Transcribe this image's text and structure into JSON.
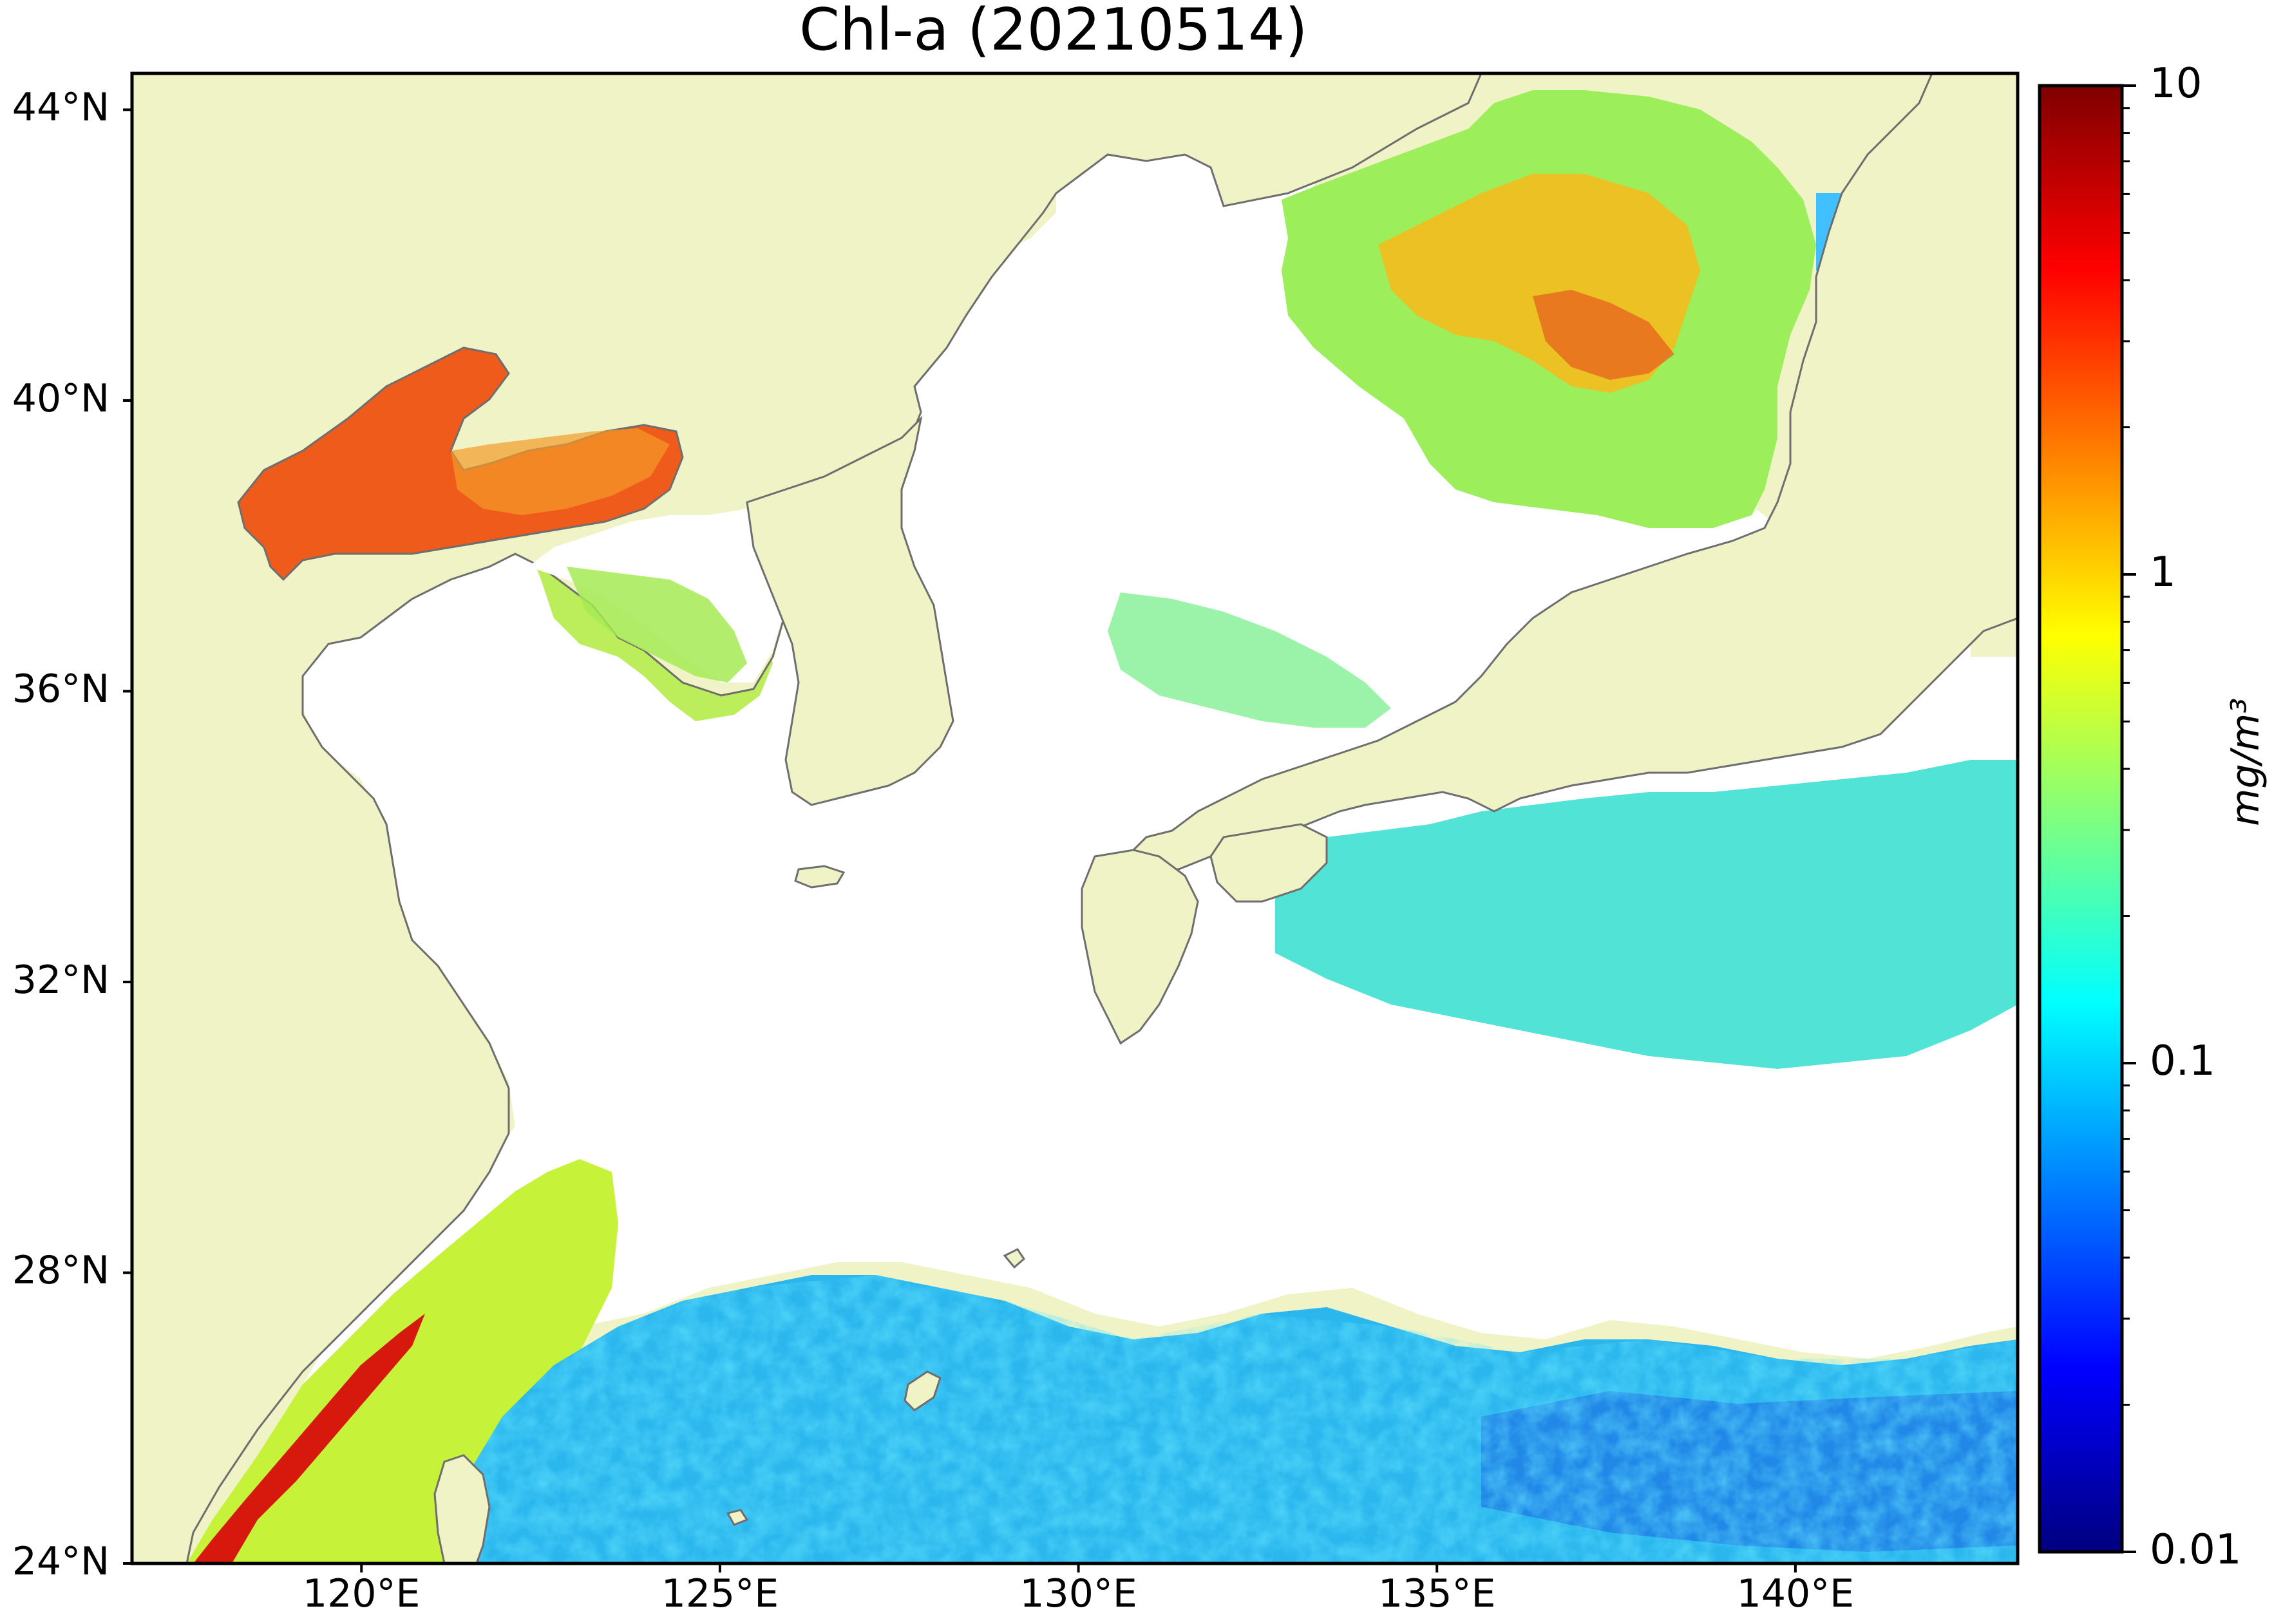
{
  "title": "Chl-a (20210514)",
  "map": {
    "extent": {
      "lon_min": 116.8,
      "lon_max": 143.1,
      "lat_min": 24.0,
      "lat_max": 44.5
    },
    "lat_ticks": [
      {
        "value": 44,
        "label": "44°N"
      },
      {
        "value": 40,
        "label": "40°N"
      },
      {
        "value": 36,
        "label": "36°N"
      },
      {
        "value": 32,
        "label": "32°N"
      },
      {
        "value": 28,
        "label": "28°N"
      },
      {
        "value": 24,
        "label": "24°N"
      }
    ],
    "lon_ticks": [
      {
        "value": 120,
        "label": "120°E"
      },
      {
        "value": 125,
        "label": "125°E"
      },
      {
        "value": 130,
        "label": "130°E"
      },
      {
        "value": 135,
        "label": "135°E"
      },
      {
        "value": 140,
        "label": "140°E"
      }
    ],
    "colors": {
      "land": "#eff3c6",
      "cloud_no_data": "#ffffff",
      "coastline": "#707070",
      "frame": "#000000"
    }
  },
  "colorbar": {
    "scale": "log",
    "min": 0.01,
    "max": 10,
    "title": "mg/m³",
    "tick_labels": [
      {
        "value": 10,
        "label": "10"
      },
      {
        "value": 1,
        "label": "1"
      },
      {
        "value": 0.1,
        "label": "0.1"
      },
      {
        "value": 0.01,
        "label": "0.01"
      }
    ],
    "colormap": "jet",
    "colors": [
      "#00007f",
      "#0000ff",
      "#007fff",
      "#00ffff",
      "#7fff7f",
      "#ffff00",
      "#ff7f00",
      "#ff0000",
      "#7f0000"
    ]
  }
}
